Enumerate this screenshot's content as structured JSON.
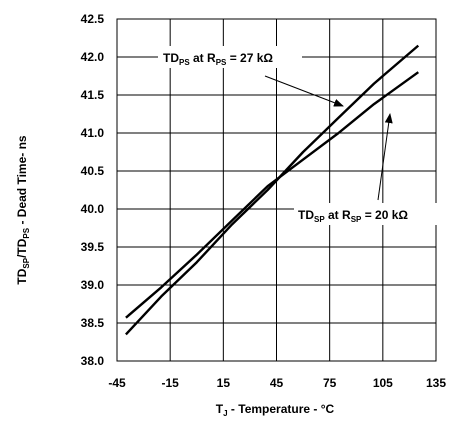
{
  "chart_data": {
    "type": "line",
    "xlabel": {
      "main": "T",
      "sub": "J",
      "rest": " - Temperature - °C"
    },
    "ylabel": {
      "a": "TD",
      "a_sub": "SP",
      "slash": "/",
      "b": "TD",
      "b_sub": "PS",
      "rest": " - Dead Time- ns"
    },
    "xlim": [
      -45,
      135
    ],
    "ylim": [
      38.0,
      42.5
    ],
    "x_ticks": [
      "-45",
      "-15",
      "15",
      "45",
      "75",
      "105",
      "135"
    ],
    "y_ticks": [
      "38.0",
      "38.5",
      "39.0",
      "39.5",
      "40.0",
      "40.5",
      "41.0",
      "41.5",
      "42.0",
      "42.5"
    ],
    "grid": true,
    "series": [
      {
        "name": "TD_PS at R_PS = 27 kΩ",
        "x": [
          -40,
          -20,
          0,
          20,
          40,
          60,
          80,
          100,
          125
        ],
        "y": [
          38.35,
          38.85,
          39.3,
          39.8,
          40.25,
          40.75,
          41.2,
          41.65,
          42.15
        ]
      },
      {
        "name": "TD_SP at R_SP = 20 kΩ",
        "x": [
          -40,
          -20,
          0,
          20,
          40,
          60,
          80,
          100,
          125
        ],
        "y": [
          38.57,
          38.97,
          39.4,
          39.85,
          40.3,
          40.65,
          41.0,
          41.38,
          41.8
        ]
      }
    ],
    "annotations": [
      {
        "main": "TD",
        "sub": "PS",
        "mid": " at R",
        "sub2": "PS",
        "rest": " = 27 kΩ"
      },
      {
        "main": "TD",
        "sub": "SP",
        "mid": " at R",
        "sub2": "SP",
        "rest": " = 20 kΩ"
      }
    ]
  }
}
